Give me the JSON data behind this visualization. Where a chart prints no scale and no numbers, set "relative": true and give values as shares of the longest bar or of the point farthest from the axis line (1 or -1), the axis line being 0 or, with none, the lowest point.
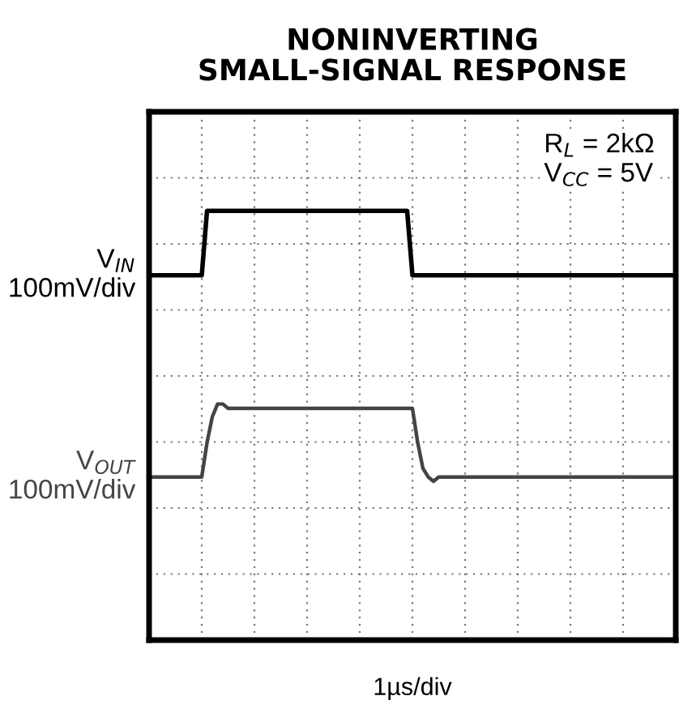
{
  "chart_data": {
    "type": "line",
    "title": "NONINVERTING\nSMALL-SIGNAL RESPONSE",
    "relative": true,
    "categories": [
      null,
      null,
      null,
      null,
      null,
      null,
      null,
      null,
      null,
      null,
      null,
      null,
      null,
      null,
      null,
      null,
      null,
      null,
      null,
      null,
      null,
      null,
      null,
      null,
      null,
      null,
      null,
      null,
      null,
      null,
      null,
      null,
      null,
      null,
      null,
      null,
      null,
      null,
      null,
      null,
      null,
      null,
      null,
      null,
      null,
      null,
      null,
      null,
      null,
      null,
      null,
      null,
      null,
      null,
      null,
      null,
      null,
      null,
      null,
      null,
      null,
      null,
      null,
      null,
      null,
      null,
      null,
      null,
      null,
      null,
      null,
      null,
      null,
      null,
      null,
      null,
      null,
      null,
      null,
      null,
      null,
      null,
      null,
      null,
      null,
      null,
      null,
      null,
      null,
      null,
      null,
      null,
      null,
      null,
      null,
      null,
      null,
      null,
      null,
      null,
      null
    ],
    "grid": true,
    "legend": "left",
    "line_style": "solid",
    "series": [
      {
        "name": "V$_{IN}$\n100mV/div",
        "color": "#000000",
        "values": [
          0.85,
          0.85,
          0.85,
          0.85,
          0.85,
          0.85,
          0.85,
          0.85,
          0.85,
          0.85,
          0.85,
          1,
          1,
          1,
          1,
          1,
          1,
          1,
          1,
          1,
          1,
          1,
          1,
          1,
          1,
          1,
          1,
          1,
          1,
          1,
          1,
          1,
          1,
          1,
          1,
          1,
          1,
          1,
          1,
          1,
          1,
          1,
          1,
          1,
          1,
          1,
          1,
          1,
          1,
          1,
          0.85,
          0.85,
          0.85,
          0.85,
          0.85,
          0.85,
          0.85,
          0.85,
          0.85,
          0.85,
          0.85,
          0.85,
          0.85,
          0.85,
          0.85,
          0.85,
          0.85,
          0.85,
          0.85,
          0.85,
          0.85,
          0.85,
          0.85,
          0.85,
          0.85,
          0.85,
          0.85,
          0.85,
          0.85,
          0.85,
          0.85,
          0.85,
          0.85,
          0.85,
          0.85,
          0.85,
          0.85,
          0.85,
          0.85,
          0.85,
          0.85,
          0.85,
          0.85,
          0.85,
          0.85,
          0.85,
          0.85,
          0.85,
          0.85,
          0.85,
          0.85
        ]
      },
      {
        "name": "V$_{OUT}$\n100mV/div",
        "color": "#444444",
        "values": [
          0.38,
          0.38,
          0.38,
          0.38,
          0.38,
          0.38,
          0.38,
          0.38,
          0.38,
          0.38,
          0.38,
          0.46,
          0.52,
          0.55,
          0.55,
          0.54,
          0.54,
          0.54,
          0.54,
          0.54,
          0.54,
          0.54,
          0.54,
          0.54,
          0.54,
          0.54,
          0.54,
          0.54,
          0.54,
          0.54,
          0.54,
          0.54,
          0.54,
          0.54,
          0.54,
          0.54,
          0.54,
          0.54,
          0.54,
          0.54,
          0.54,
          0.54,
          0.54,
          0.54,
          0.54,
          0.54,
          0.54,
          0.54,
          0.54,
          0.54,
          0.54,
          0.46,
          0.4,
          0.38,
          0.37,
          0.38,
          0.38,
          0.38,
          0.38,
          0.38,
          0.38,
          0.38,
          0.38,
          0.38,
          0.38,
          0.38,
          0.38,
          0.38,
          0.38,
          0.38,
          0.38,
          0.38,
          0.38,
          0.38,
          0.38,
          0.38,
          0.38,
          0.38,
          0.38,
          0.38,
          0.38,
          0.38,
          0.38,
          0.38,
          0.38,
          0.38,
          0.38,
          0.38,
          0.38,
          0.38,
          0.38,
          0.38,
          0.38,
          0.38,
          0.38,
          0.38,
          0.38,
          0.38,
          0.38,
          0.38,
          0.38
        ]
      }
    ],
    "annotations": [
      "R$_{L}$ = 2kΩ\nV$_{CC}$ = 5V",
      "1µs/div"
    ]
  }
}
